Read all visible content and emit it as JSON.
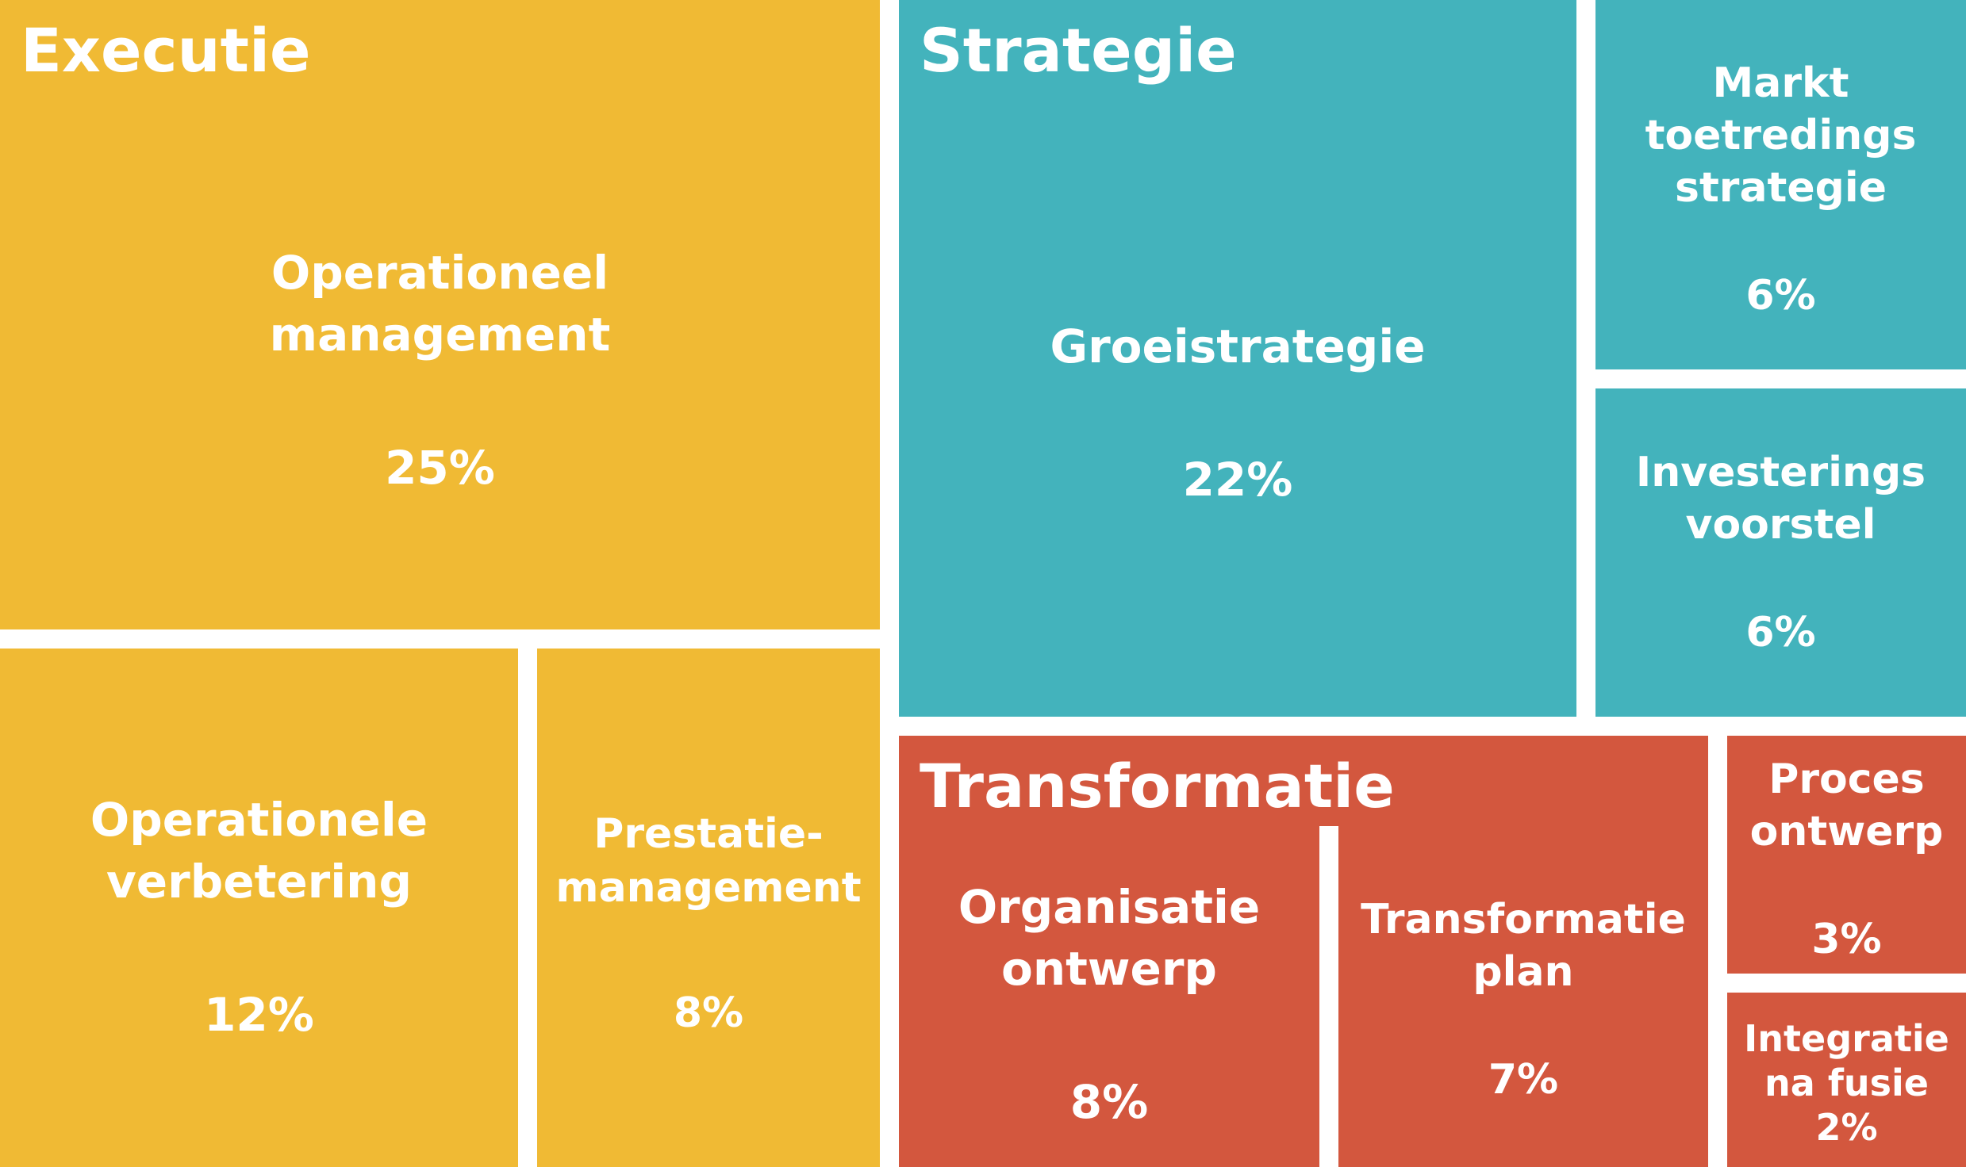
{
  "chart_data": {
    "type": "treemap",
    "unit": "%",
    "colors": {
      "Executie": "#F0BA34",
      "Strategie": "#43B3BC",
      "Transformatie": "#D3573E",
      "text": "#FFFFFF",
      "background": "#FFFFFF"
    },
    "groups": [
      {
        "name": "Executie",
        "items": [
          {
            "label": "Operationeel\nmanagement",
            "value": 25,
            "value_label": "25%"
          },
          {
            "label": "Operationele\nverbetering",
            "value": 12,
            "value_label": "12%"
          },
          {
            "label": "Prestatie-\nmanagement",
            "value": 8,
            "value_label": "8%"
          }
        ]
      },
      {
        "name": "Strategie",
        "items": [
          {
            "label": "Groeistrategie",
            "value": 22,
            "value_label": "22%"
          },
          {
            "label": "Markt\ntoetredings\nstrategie",
            "value": 6,
            "value_label": "6%"
          },
          {
            "label": "Investerings\nvoorstel",
            "value": 6,
            "value_label": "6%"
          }
        ]
      },
      {
        "name": "Transformatie",
        "items": [
          {
            "label": "Organisatie\nontwerp",
            "value": 8,
            "value_label": "8%"
          },
          {
            "label": "Transformatie\nplan",
            "value": 7,
            "value_label": "7%"
          },
          {
            "label": "Proces\nontwerp",
            "value": 3,
            "value_label": "3%"
          },
          {
            "label": "Integratie\nna fusie",
            "value": 2,
            "value_label": "2%"
          }
        ]
      }
    ]
  }
}
